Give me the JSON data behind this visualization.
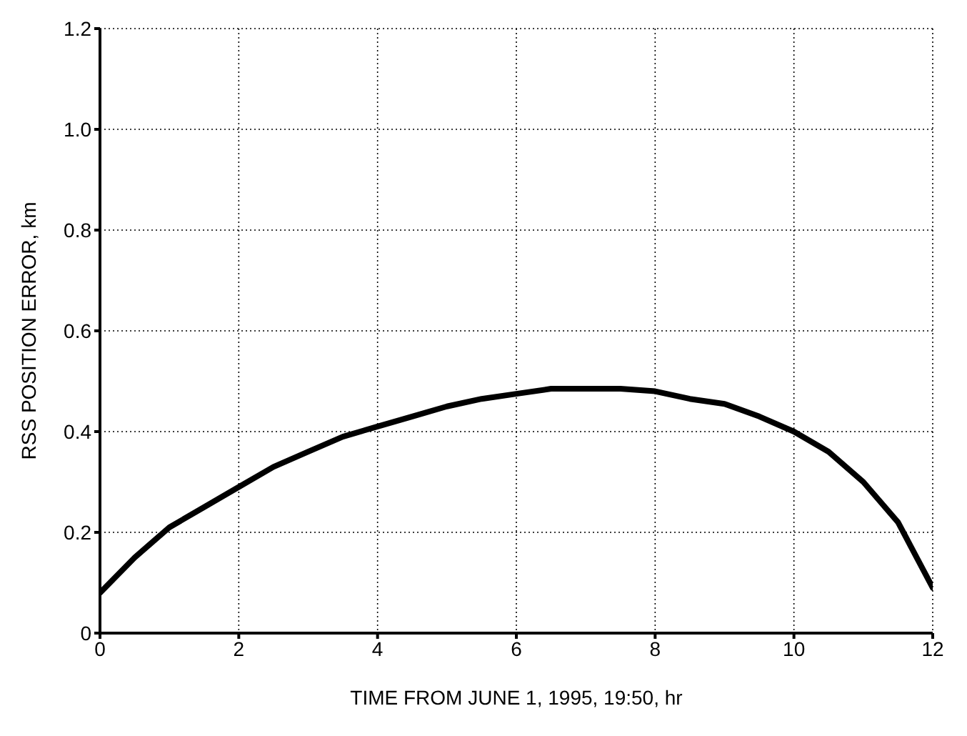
{
  "chart_data": {
    "type": "line",
    "xlabel": "TIME FROM JUNE 1, 1995, 19:50, hr",
    "ylabel": "RSS POSITION ERROR, km",
    "x": [
      0,
      0.5,
      1,
      1.5,
      2,
      2.5,
      3,
      3.5,
      4,
      4.5,
      5,
      5.5,
      6,
      6.5,
      7,
      7.5,
      8,
      8.5,
      9,
      9.5,
      10,
      10.5,
      11,
      11.5,
      12
    ],
    "series": [
      {
        "color": "#000000",
        "values": [
          0.08,
          0.15,
          0.21,
          0.25,
          0.29,
          0.33,
          0.36,
          0.39,
          0.41,
          0.43,
          0.45,
          0.465,
          0.475,
          0.485,
          0.485,
          0.485,
          0.48,
          0.465,
          0.455,
          0.43,
          0.4,
          0.36,
          0.3,
          0.22,
          0.09
        ]
      }
    ],
    "xlim": [
      0,
      12
    ],
    "xticks": [
      0,
      2,
      4,
      6,
      8,
      10,
      12
    ],
    "ylim": [
      0,
      1.2
    ],
    "yticks": [
      0,
      0.2,
      0.4,
      0.6,
      0.8,
      {
        "value": 1,
        "label": "1.0"
      },
      1.2
    ],
    "grid": true,
    "legend": false,
    "marker": "none",
    "line_style": "solid"
  }
}
